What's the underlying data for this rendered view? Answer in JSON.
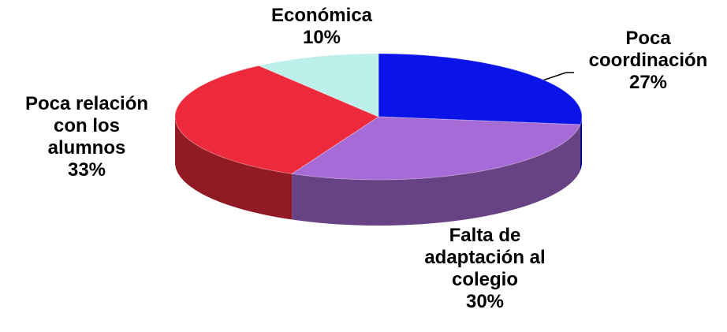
{
  "chart_data": {
    "type": "pie",
    "categories": [
      "Poca coordinación",
      "Falta de adaptación al colegio",
      "Poca relación con los alumnos",
      "Económica"
    ],
    "values": [
      27,
      30,
      33,
      10
    ],
    "value_labels": [
      "27%",
      "30%",
      "33%",
      "10%"
    ],
    "colors": [
      "#0a14e8",
      "#a66bd6",
      "#ec2a3c",
      "#bdf0ea"
    ]
  }
}
